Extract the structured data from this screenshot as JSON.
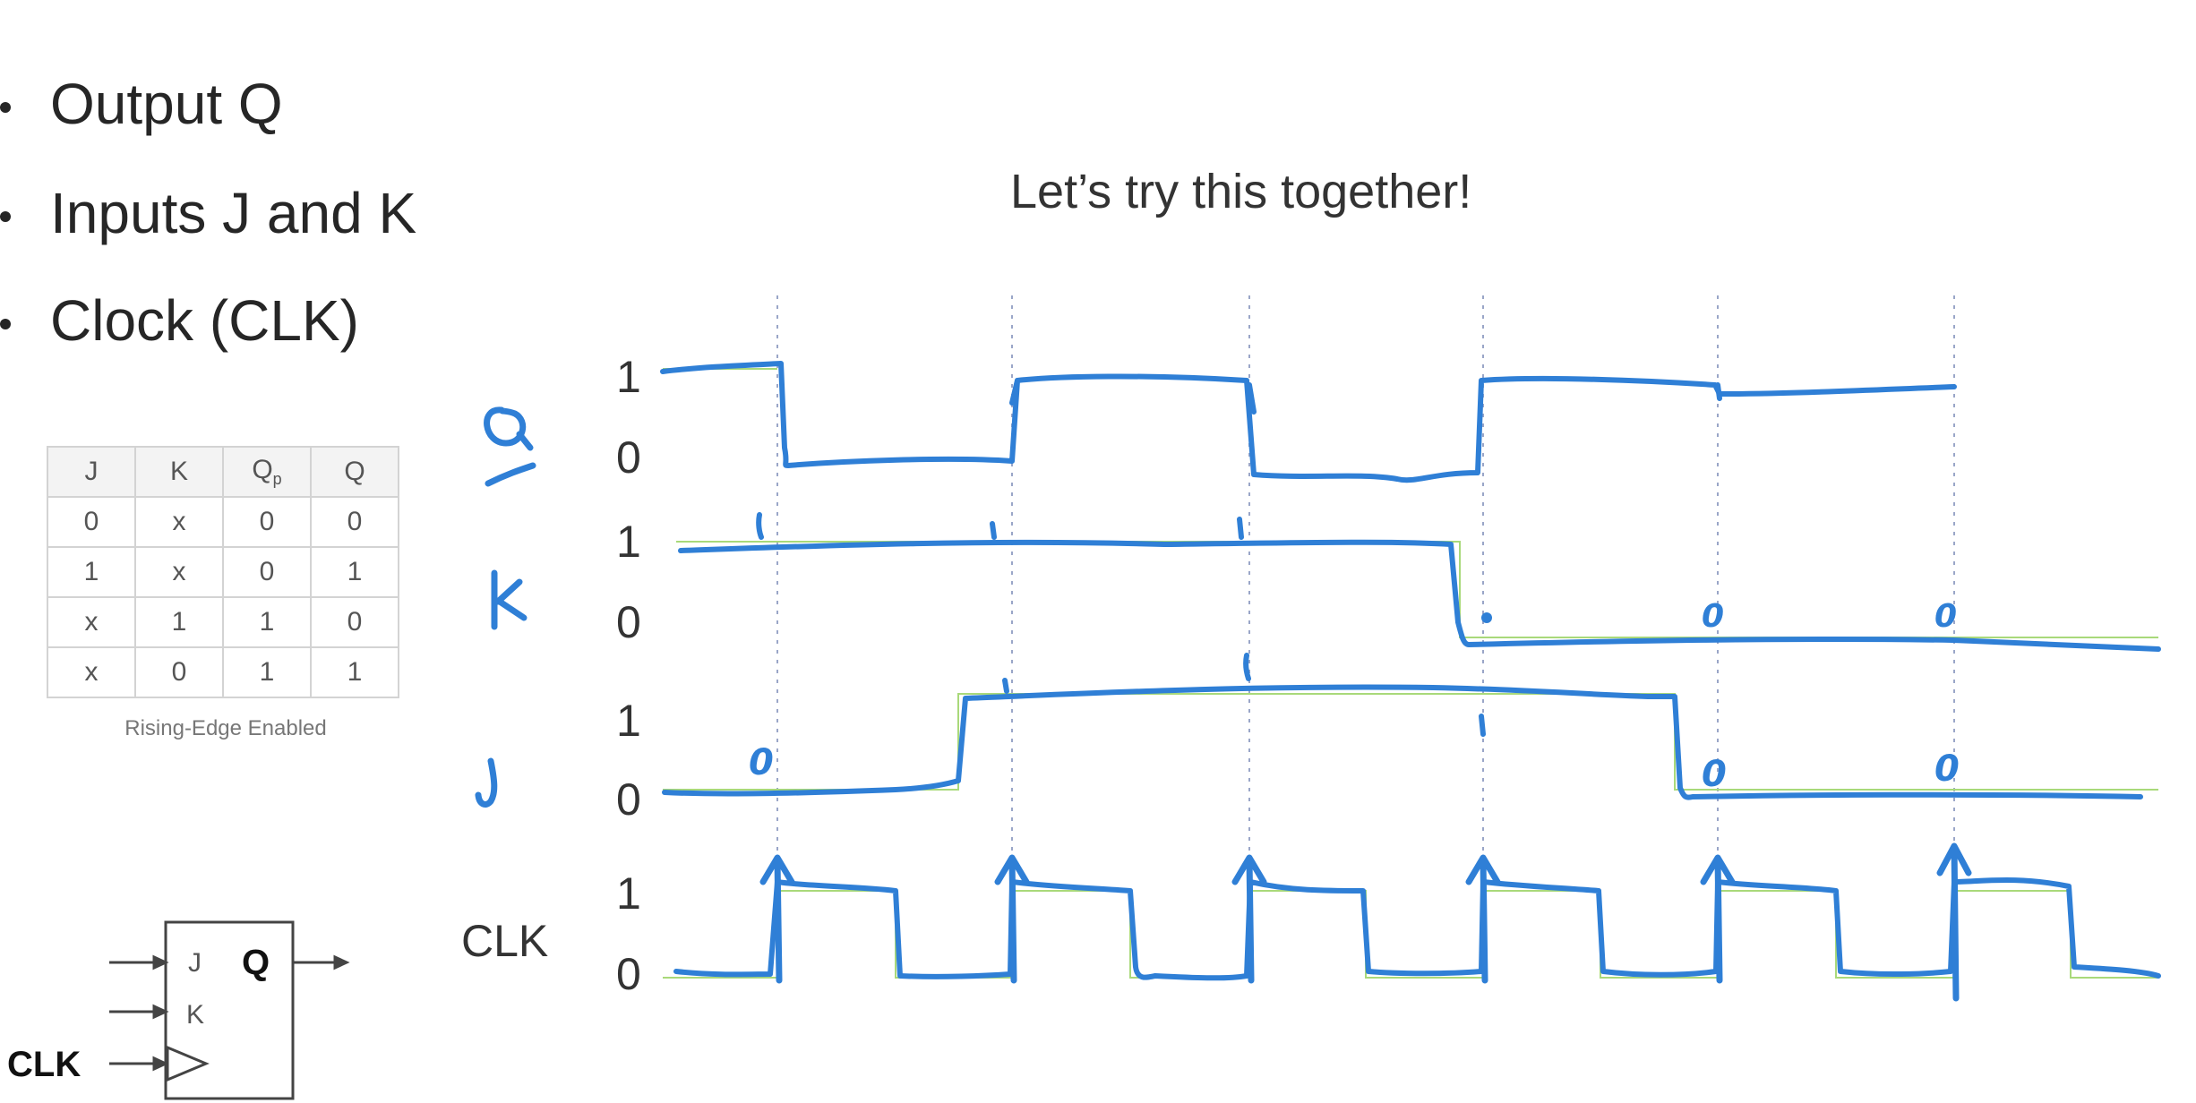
{
  "bullets": [
    "Output Q",
    "Inputs J and K",
    "Clock (CLK)"
  ],
  "heading": "Let’s try this together!",
  "truth_table": {
    "headers": [
      "J",
      "K",
      "Q",
      "Q"
    ],
    "header_sub": "p",
    "rows": [
      [
        "0",
        "x",
        "0",
        "0"
      ],
      [
        "1",
        "x",
        "0",
        "1"
      ],
      [
        "x",
        "1",
        "1",
        "0"
      ],
      [
        "x",
        "0",
        "1",
        "1"
      ]
    ],
    "caption": "Rising-Edge Enabled"
  },
  "symbol": {
    "j": "J",
    "k": "K",
    "q": "Q",
    "clk": "CLK"
  },
  "timing": {
    "signals": [
      {
        "name": "Q",
        "hi": "1",
        "lo": "0"
      },
      {
        "name": "K",
        "hi": "1",
        "lo": "0"
      },
      {
        "name": "J",
        "hi": "1",
        "lo": "0"
      },
      {
        "name": "CLK",
        "hi": "1",
        "lo": "0"
      }
    ],
    "annotations": {
      "k_rising_marks": [
        "1",
        "1",
        "1"
      ],
      "k_falling_marks": [
        "0",
        "0"
      ],
      "j_marks_low": [
        "0",
        "0",
        "0"
      ],
      "j_marks_high": [
        "1",
        "1",
        "1"
      ]
    },
    "colors": {
      "ink": "#2f7fd6",
      "guide": "#a9d97a",
      "gridline": "#9aa6c8"
    }
  }
}
